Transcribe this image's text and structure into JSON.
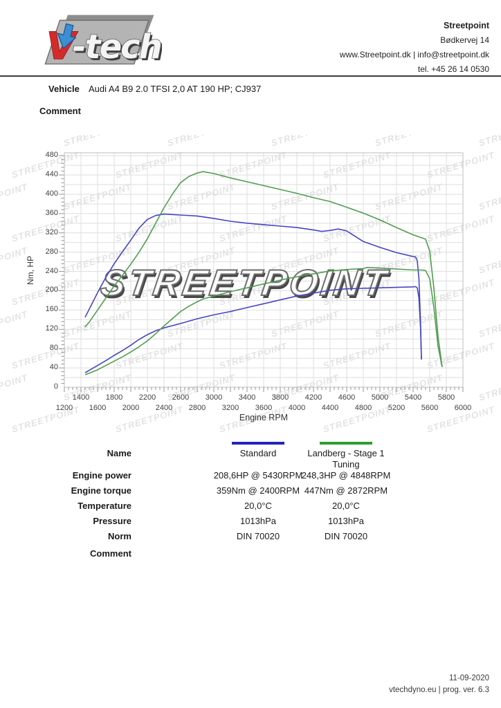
{
  "logo": {
    "brand": "V-tech",
    "v_letter": "V",
    "rest": "-tech"
  },
  "header": {
    "company": "Streetpoint",
    "address": "Bødkervej 14",
    "web_email": "www.Streetpoint.dk | info@streetpoint.dk",
    "phone": "tel. +45 26 14 0530"
  },
  "vehicle": {
    "label": "Vehicle",
    "value": "Audi A4 B9 2.0 TFSI 2,0 AT 190 HP; CJ937"
  },
  "comment_label": "Comment",
  "watermark": {
    "text": "STREETPOINT",
    "tile_color": "#e3e3e3"
  },
  "chart_data": {
    "type": "line",
    "title": "",
    "xlabel": "Engine RPM",
    "ylabel": "Nm, HP",
    "xlim": [
      1200,
      6000
    ],
    "ylim": [
      0,
      480
    ],
    "grid": true,
    "legend_position": "below-chart",
    "colors": {
      "grid": "#dedede",
      "border": "#bdbdbd",
      "tick": "#8a8a8a"
    },
    "axes": {
      "x_labels_row1": [
        1400,
        1800,
        2200,
        2600,
        3000,
        3400,
        3800,
        4200,
        4600,
        5000,
        5400,
        5800
      ],
      "x_labels_row2": [
        1200,
        1600,
        2000,
        2400,
        2800,
        3200,
        3600,
        4000,
        4400,
        4800,
        5200,
        5600,
        6000
      ],
      "x_grid_step": 200,
      "x_minor_tick_step": 50,
      "y_labels": [
        0,
        40,
        80,
        120,
        160,
        200,
        240,
        280,
        320,
        360,
        400,
        440,
        480
      ],
      "y_grid_step": 20,
      "y_minor_tick_step": 8
    },
    "series": [
      {
        "name": "Standard",
        "color": "#4444c4",
        "torque_nm": {
          "rpm": [
            1450,
            1500,
            1600,
            1700,
            1800,
            1900,
            2000,
            2100,
            2200,
            2300,
            2400,
            2600,
            2800,
            3000,
            3200,
            3400,
            3600,
            3800,
            4000,
            4200,
            4300,
            4400,
            4500,
            4600,
            4700,
            4800,
            5000,
            5200,
            5300,
            5400,
            5430,
            5450,
            5470,
            5490,
            5500
          ],
          "values": [
            145,
            162,
            196,
            228,
            256,
            281,
            305,
            330,
            348,
            356,
            359,
            357,
            355,
            350,
            344,
            340,
            337,
            334,
            331,
            326,
            323,
            325,
            328,
            324,
            313,
            302,
            290,
            279,
            275,
            271,
            270,
            262,
            225,
            130,
            57
          ]
        },
        "power_hp": {
          "rpm": [
            1450,
            1500,
            1600,
            1700,
            1800,
            1900,
            2000,
            2100,
            2200,
            2300,
            2400,
            2600,
            2800,
            3000,
            3200,
            3400,
            3600,
            3800,
            4000,
            4200,
            4400,
            4600,
            4800,
            5000,
            5200,
            5400,
            5430,
            5450,
            5470,
            5490,
            5500
          ],
          "values": [
            30,
            35,
            45,
            55,
            66,
            76,
            87,
            99,
            109,
            117,
            123,
            132,
            142,
            150,
            157,
            165,
            173,
            181,
            189,
            195,
            201,
            204,
            205,
            206,
            207,
            208,
            208.6,
            206,
            185,
            120,
            60
          ]
        }
      },
      {
        "name": "Landberg - Stage 1 Tuning",
        "color": "#4f9d4f",
        "torque_nm": {
          "rpm": [
            1450,
            1500,
            1600,
            1700,
            1800,
            1900,
            2000,
            2100,
            2200,
            2300,
            2400,
            2500,
            2600,
            2700,
            2800,
            2872,
            3000,
            3200,
            3400,
            3600,
            3800,
            4000,
            4200,
            4400,
            4600,
            4800,
            5000,
            5200,
            5400,
            5500,
            5550,
            5600,
            5650,
            5700,
            5750
          ],
          "values": [
            125,
            135,
            160,
            185,
            210,
            232,
            255,
            280,
            308,
            340,
            372,
            400,
            424,
            437,
            444,
            447,
            443,
            434,
            426,
            418,
            410,
            402,
            393,
            385,
            373,
            361,
            347,
            331,
            316,
            310,
            307,
            282,
            205,
            105,
            42
          ]
        },
        "power_hp": {
          "rpm": [
            1450,
            1500,
            1600,
            1700,
            1800,
            1900,
            2000,
            2100,
            2200,
            2300,
            2400,
            2500,
            2600,
            2700,
            2800,
            2872,
            3000,
            3200,
            3400,
            3600,
            3800,
            4000,
            4200,
            4400,
            4600,
            4800,
            4848,
            5000,
            5200,
            5400,
            5500,
            5550,
            5600,
            5650,
            5700,
            5750
          ],
          "values": [
            26,
            29,
            36,
            45,
            54,
            63,
            73,
            84,
            96,
            111,
            127,
            142,
            157,
            168,
            177,
            183,
            189,
            198,
            206,
            214,
            222,
            229,
            235,
            241,
            244,
            246,
            248.3,
            247,
            245,
            243,
            243,
            242,
            225,
            165,
            85,
            42
          ]
        }
      }
    ]
  },
  "table": {
    "legend": [
      {
        "name": "Standard",
        "color": "#2323bd"
      },
      {
        "name": "Landberg - Stage 1 Tuning",
        "color": "#2f9e2f"
      }
    ],
    "rows": [
      {
        "label": "Name",
        "col1": "Standard",
        "col2": "Landberg - Stage 1 Tuning"
      },
      {
        "label": "Engine power",
        "col1": "208,6HP @ 5430RPM",
        "col2": "248,3HP @ 4848RPM"
      },
      {
        "label": "Engine torque",
        "col1": "359Nm @ 2400RPM",
        "col2": "447Nm @ 2872RPM"
      },
      {
        "label": "Temperature",
        "col1": "20,0°C",
        "col2": "20,0°C"
      },
      {
        "label": "Pressure",
        "col1": "1013hPa",
        "col2": "1013hPa"
      },
      {
        "label": "Norm",
        "col1": "DIN 70020",
        "col2": "DIN 70020"
      },
      {
        "label": "Comment",
        "col1": "",
        "col2": ""
      }
    ]
  },
  "footer": {
    "date": "11-09-2020",
    "app": "vtechdyno.eu | prog. ver. 6.3"
  }
}
